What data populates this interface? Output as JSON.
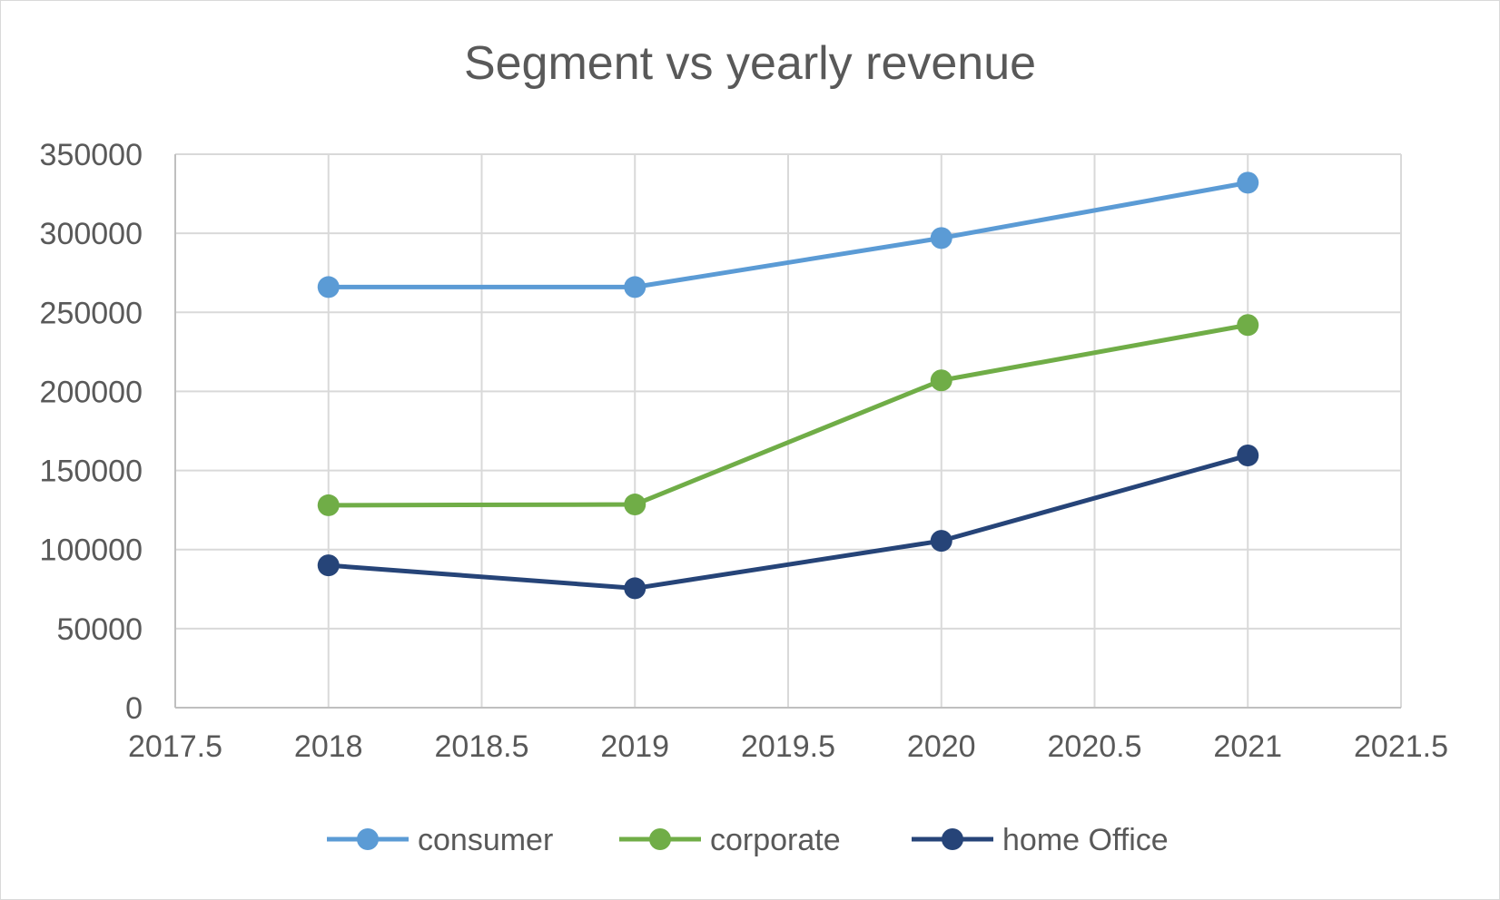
{
  "chart_data": {
    "type": "scatter",
    "title": "Segment vs yearly revenue",
    "xlabel": "",
    "ylabel": "",
    "xlim": [
      2017.5,
      2021.5
    ],
    "ylim": [
      0,
      350000
    ],
    "x_ticks": [
      2017.5,
      2018,
      2018.5,
      2019,
      2019.5,
      2020,
      2020.5,
      2021,
      2021.5
    ],
    "y_ticks": [
      0,
      50000,
      100000,
      150000,
      200000,
      250000,
      300000,
      350000
    ],
    "x_tick_labels": [
      "2017.5",
      "2018",
      "2018.5",
      "2019",
      "2019.5",
      "2020",
      "2020.5",
      "2021",
      "2021.5"
    ],
    "y_tick_labels": [
      "0",
      "50000",
      "100000",
      "150000",
      "200000",
      "250000",
      "300000",
      "350000"
    ],
    "grid": true,
    "legend_position": "bottom",
    "series": [
      {
        "name": "consumer",
        "color": "#5b9bd5",
        "x": [
          2018,
          2019,
          2020,
          2021
        ],
        "y": [
          266000,
          266000,
          297000,
          332000
        ]
      },
      {
        "name": "corporate",
        "color": "#70ad47",
        "x": [
          2018,
          2019,
          2020,
          2021
        ],
        "y": [
          128000,
          128500,
          207000,
          242000
        ]
      },
      {
        "name": "home Office",
        "color": "#264478",
        "x": [
          2018,
          2019,
          2020,
          2021
        ],
        "y": [
          90000,
          75500,
          105500,
          159500
        ]
      }
    ]
  }
}
